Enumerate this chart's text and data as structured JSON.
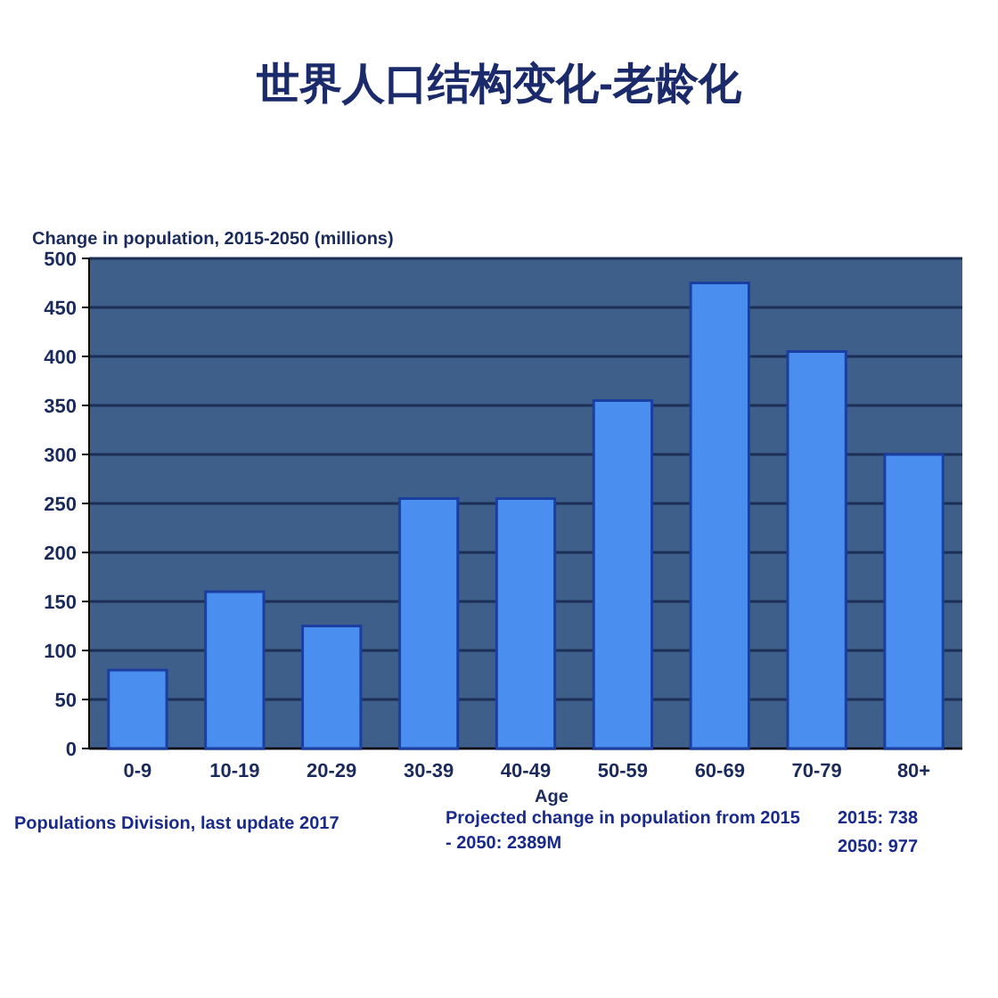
{
  "chart_data": {
    "type": "bar",
    "title": "世界人口结构变化-老龄化",
    "ylabel": "Change in population, 2015-2050 (millions)",
    "xlabel": "Age",
    "categories": [
      "0-9",
      "10-19",
      "20-29",
      "30-39",
      "40-49",
      "50-59",
      "60-69",
      "70-79",
      "80+"
    ],
    "series": [
      {
        "color": "#4a8ef0",
        "values": [
          80,
          160,
          125,
          255,
          255,
          355,
          475,
          405,
          300
        ]
      }
    ],
    "ylim": [
      0,
      500
    ],
    "yticks": [
      0,
      50,
      100,
      150,
      200,
      250,
      300,
      350,
      400,
      450,
      500
    ],
    "grid": "y",
    "annotations": [
      "Populations Division, last update 2017",
      "Projected change in population from 2015 - 2050: 2389M",
      "2015: 738",
      "2050: 977"
    ]
  }
}
